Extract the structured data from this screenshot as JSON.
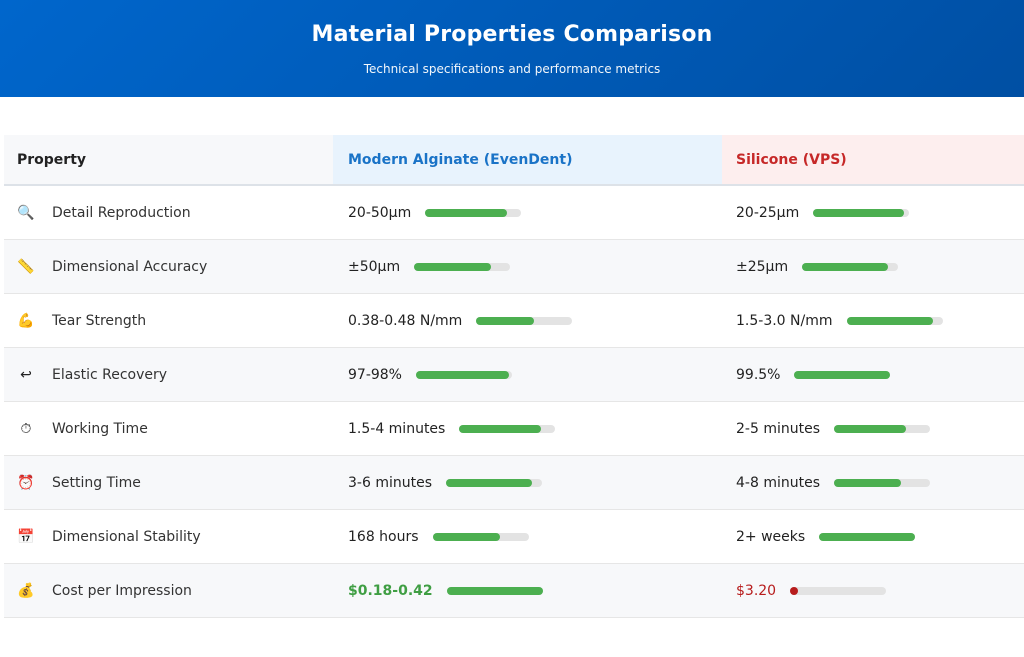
{
  "header": {
    "title": "Material Properties Comparison",
    "subtitle": "Technical specifications and performance metrics"
  },
  "table": {
    "columns": [
      "Property",
      "Modern Alginate (EvenDent)",
      "Silicone (VPS)"
    ],
    "rows": [
      {
        "icon": "magnifier-icon",
        "label": "Detail Reproduction",
        "alginate": {
          "value": "20-50µm",
          "level": 0.85
        },
        "silicone": {
          "value": "20-25µm",
          "level": 0.95
        }
      },
      {
        "icon": "ruler-icon",
        "label": "Dimensional Accuracy",
        "alginate": {
          "value": "±50µm",
          "level": 0.8
        },
        "silicone": {
          "value": "±25µm",
          "level": 0.9
        }
      },
      {
        "icon": "flexed-biceps-icon",
        "label": "Tear Strength",
        "alginate": {
          "value": "0.38-0.48 N/mm",
          "level": 0.6
        },
        "silicone": {
          "value": "1.5-3.0 N/mm",
          "level": 0.9
        }
      },
      {
        "icon": "return-arrow-icon",
        "label": "Elastic Recovery",
        "alginate": {
          "value": "97-98%",
          "level": 0.97
        },
        "silicone": {
          "value": "99.5%",
          "level": 1.0
        }
      },
      {
        "icon": "stopwatch-icon",
        "label": "Working Time",
        "alginate": {
          "value": "1.5-4 minutes",
          "level": 0.85
        },
        "silicone": {
          "value": "2-5 minutes",
          "level": 0.75
        }
      },
      {
        "icon": "alarm-clock-icon",
        "label": "Setting Time",
        "alginate": {
          "value": "3-6 minutes",
          "level": 0.9
        },
        "silicone": {
          "value": "4-8 minutes",
          "level": 0.7
        }
      },
      {
        "icon": "calendar-icon",
        "label": "Dimensional Stability",
        "alginate": {
          "value": "168 hours",
          "level": 0.7
        },
        "silicone": {
          "value": "2+ weeks",
          "level": 1.0
        }
      },
      {
        "icon": "money-bag-icon",
        "label": "Cost per Impression",
        "alginate": {
          "value": "$0.18-0.42",
          "level": 1.0,
          "style": "good"
        },
        "silicone": {
          "value": "$3.20",
          "level": 0.08,
          "style": "bad"
        }
      }
    ]
  },
  "colors": {
    "header_gradient_start": "#0066cc",
    "header_gradient_end": "#004fa3",
    "bar_fill": "#4caf50",
    "bar_track": "#e3e3e3",
    "bar_fill_low": "#b71c1c",
    "alginate_header_bg": "#e8f3fd",
    "alginate_header_text": "#1a73c7",
    "silicone_header_bg": "#fdeeee",
    "silicone_header_text": "#c62828",
    "good_value": "#3f9e43",
    "bad_value": "#b71c1c"
  }
}
